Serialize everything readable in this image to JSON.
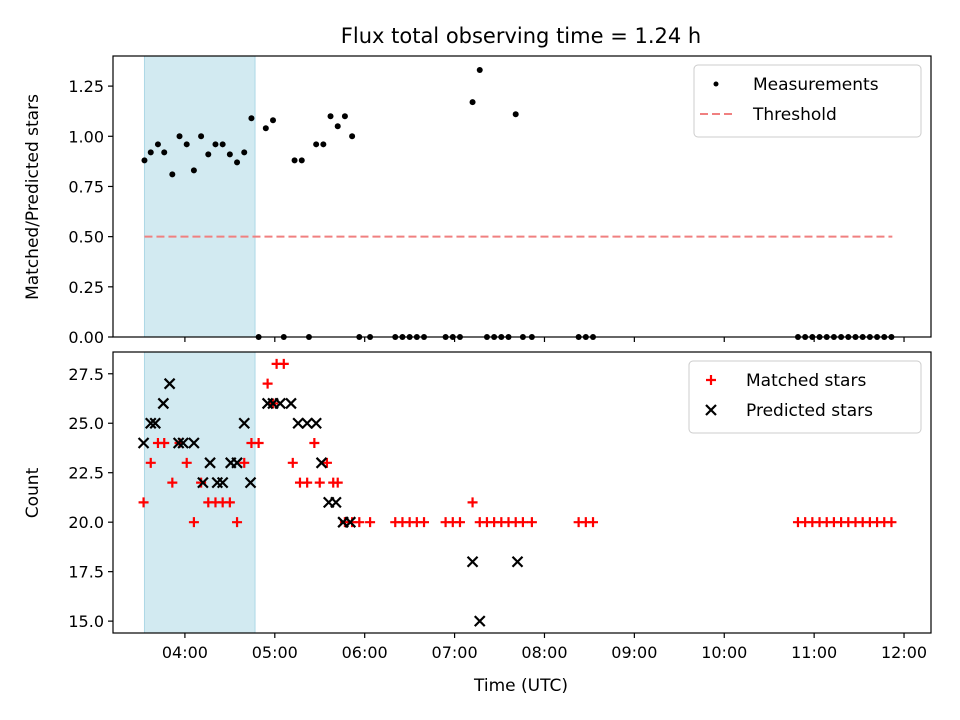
{
  "title": "Flux total observing time = 1.24 h",
  "colors": {
    "highlight": "#add8e6",
    "threshold": "#f08080",
    "measurement": "#000000",
    "matched": "#ff0000",
    "predicted": "#000000"
  },
  "chart_data": [
    {
      "type": "scatter",
      "ylabel": "Matched/Predicted stars",
      "xlabel": "",
      "x_unit": "hours UTC",
      "xlim": [
        3.2,
        12.3
      ],
      "ylim": [
        0,
        1.4
      ],
      "yticks": [
        0.0,
        0.25,
        0.5,
        0.75,
        1.0,
        1.25
      ],
      "ytick_labels": [
        "0.00",
        "0.25",
        "0.50",
        "0.75",
        "1.00",
        "1.25"
      ],
      "xticks": [
        4,
        5,
        6,
        7,
        8,
        9,
        10,
        11,
        12
      ],
      "highlight_span": [
        3.55,
        4.78
      ],
      "legend_location": "upper right",
      "legend": [
        "Measurements",
        "Threshold"
      ],
      "threshold": {
        "value": 0.5,
        "x_range": [
          3.55,
          11.87
        ]
      },
      "series": [
        {
          "name": "Measurements",
          "x": [
            3.55,
            3.62,
            3.7,
            3.77,
            3.86,
            3.94,
            4.02,
            4.1,
            4.18,
            4.26,
            4.34,
            4.42,
            4.5,
            4.58,
            4.66,
            4.74,
            4.82,
            4.9,
            4.98,
            5.1,
            5.22,
            5.3,
            5.38,
            5.46,
            5.54,
            5.62,
            5.7,
            5.78,
            5.86,
            5.94,
            6.06,
            6.34,
            6.42,
            6.5,
            6.58,
            6.66,
            6.9,
            6.98,
            7.06,
            7.2,
            7.28,
            7.36,
            7.44,
            7.52,
            7.6,
            7.68,
            7.76,
            7.86,
            8.38,
            8.46,
            8.54,
            10.82,
            10.9,
            10.98,
            11.06,
            11.14,
            11.22,
            11.3,
            11.38,
            11.46,
            11.54,
            11.62,
            11.7,
            11.78,
            11.86
          ],
          "y": [
            0.88,
            0.92,
            0.96,
            0.92,
            0.81,
            1.0,
            0.96,
            0.83,
            1.0,
            0.91,
            0.96,
            0.96,
            0.91,
            0.87,
            0.92,
            1.09,
            0,
            1.04,
            1.08,
            0,
            0.88,
            0.88,
            0,
            0.96,
            0.96,
            1.1,
            1.05,
            1.1,
            1.0,
            0,
            0,
            0,
            0,
            0,
            0,
            0,
            0,
            0,
            0,
            1.17,
            1.33,
            0,
            0,
            0,
            0,
            1.11,
            0,
            0,
            0,
            0,
            0,
            0,
            0,
            0,
            0,
            0,
            0,
            0,
            0,
            0,
            0,
            0,
            0,
            0,
            0
          ]
        }
      ]
    },
    {
      "type": "scatter",
      "ylabel": "Count",
      "xlabel": "Time (UTC)",
      "x_unit": "hours UTC",
      "xlim": [
        3.2,
        12.3
      ],
      "ylim": [
        14.4,
        28.6
      ],
      "yticks": [
        15.0,
        17.5,
        20.0,
        22.5,
        25.0,
        27.5
      ],
      "ytick_labels": [
        "15.0",
        "17.5",
        "20.0",
        "22.5",
        "25.0",
        "27.5"
      ],
      "xticks": [
        4,
        5,
        6,
        7,
        8,
        9,
        10,
        11,
        12
      ],
      "xtick_labels": [
        "04:00",
        "05:00",
        "06:00",
        "07:00",
        "08:00",
        "09:00",
        "10:00",
        "11:00",
        "12:00"
      ],
      "highlight_span": [
        3.55,
        4.78
      ],
      "legend_location": "upper right",
      "legend": [
        "Matched stars",
        "Predicted stars"
      ],
      "series": [
        {
          "name": "Matched stars",
          "marker": "plus",
          "x": [
            3.54,
            3.62,
            3.7,
            3.77,
            3.86,
            3.94,
            4.02,
            4.1,
            4.18,
            4.26,
            4.34,
            4.42,
            4.5,
            4.58,
            4.66,
            4.74,
            4.82,
            4.92,
            4.98,
            5.02,
            5.1,
            5.2,
            5.28,
            5.36,
            5.44,
            5.5,
            5.58,
            5.65,
            5.7,
            5.78,
            5.86,
            5.94,
            6.06,
            6.34,
            6.42,
            6.5,
            6.58,
            6.66,
            6.9,
            6.98,
            7.06,
            7.2,
            7.28,
            7.36,
            7.44,
            7.52,
            7.6,
            7.68,
            7.76,
            7.86,
            8.38,
            8.46,
            8.54,
            10.82,
            10.9,
            10.98,
            11.06,
            11.14,
            11.22,
            11.3,
            11.38,
            11.46,
            11.54,
            11.62,
            11.7,
            11.78,
            11.86
          ],
          "y": [
            21,
            23,
            24,
            24,
            22,
            24,
            23,
            20,
            22,
            21,
            21,
            21,
            21,
            20,
            23,
            24,
            24,
            27,
            26,
            28,
            28,
            23,
            22,
            22,
            24,
            22,
            23,
            22,
            22,
            20,
            20,
            20,
            20,
            20,
            20,
            20,
            20,
            20,
            20,
            20,
            20,
            21,
            20,
            20,
            20,
            20,
            20,
            20,
            20,
            20,
            20,
            20,
            20,
            20,
            20,
            20,
            20,
            20,
            20,
            20,
            20,
            20,
            20,
            20,
            20,
            20,
            20
          ]
        },
        {
          "name": "Predicted stars",
          "marker": "x",
          "x": [
            3.54,
            3.62,
            3.67,
            3.76,
            3.83,
            3.93,
            3.98,
            4.1,
            4.2,
            4.28,
            4.36,
            4.42,
            4.51,
            4.58,
            4.66,
            4.73,
            4.92,
            4.98,
            5.06,
            5.18,
            5.26,
            5.36,
            5.46,
            5.52,
            5.6,
            5.68,
            5.76,
            5.84,
            7.2,
            7.28,
            7.7
          ],
          "y": [
            24,
            25,
            25,
            26,
            27,
            24,
            24,
            24,
            22,
            23,
            22,
            22,
            23,
            23,
            25,
            22,
            26,
            26,
            26,
            26,
            25,
            25,
            25,
            23,
            21,
            21,
            20,
            20,
            18,
            15,
            18
          ]
        }
      ]
    }
  ]
}
